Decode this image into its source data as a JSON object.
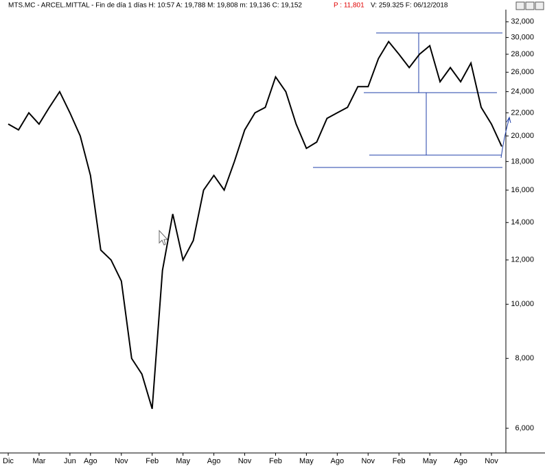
{
  "chart_data": {
    "type": "line",
    "title": "MTS.MC - ARCEL.MITTAL - Fin de día 1 días H: 10:57 A: 19,788 M: 19,808 m: 19,136 C: 19,152",
    "title_highlight": "P : 11,801",
    "title_suffix": "V: 259.325 F: 06/12/2018",
    "log_scale": true,
    "categories": [
      "Dic",
      null,
      null,
      "Mar",
      null,
      null,
      "Jun",
      null,
      "Ago",
      null,
      null,
      "Nov",
      null,
      null,
      "Feb",
      null,
      null,
      "May",
      null,
      null,
      "Ago",
      null,
      null,
      "Nov",
      null,
      null,
      "Feb",
      null,
      null,
      "May",
      null,
      null,
      "Ago",
      null,
      null,
      "Nov",
      null,
      null,
      "Feb",
      null,
      null,
      "May",
      null,
      null,
      "Ago",
      null,
      null,
      "Nov",
      null
    ],
    "series": [
      {
        "name": "MTS.MC",
        "color": "#000000",
        "values": [
          21000,
          20500,
          22000,
          21000,
          22500,
          24000,
          22000,
          20000,
          17000,
          12500,
          12000,
          11000,
          8000,
          7500,
          6500,
          11500,
          14500,
          12000,
          13000,
          16000,
          17000,
          16000,
          18000,
          20500,
          22000,
          22500,
          25500,
          24000,
          21000,
          19000,
          19500,
          21500,
          22000,
          22500,
          24500,
          24500,
          27500,
          29500,
          28000,
          26500,
          28000,
          29000,
          25000,
          26500,
          25000,
          27000,
          22500,
          21000,
          19152
        ]
      }
    ],
    "ylim": [
      5420,
      33650
    ],
    "yticks": [
      {
        "value": 6000,
        "label": "6,000"
      },
      {
        "value": 8000,
        "label": "8,000"
      },
      {
        "value": 10000,
        "label": "10,000"
      },
      {
        "value": 12000,
        "label": "12,000"
      },
      {
        "value": 14000,
        "label": "14,000"
      },
      {
        "value": 16000,
        "label": "16,000"
      },
      {
        "value": 18000,
        "label": "18,000"
      },
      {
        "value": 20000,
        "label": "20,000"
      },
      {
        "value": 22000,
        "label": "22,000"
      },
      {
        "value": 24000,
        "label": "24,000"
      },
      {
        "value": 26000,
        "label": "26,000"
      },
      {
        "value": 28000,
        "label": "28,000"
      },
      {
        "value": 30000,
        "label": "30,000"
      },
      {
        "value": 32000,
        "label": "32,000"
      }
    ]
  }
}
